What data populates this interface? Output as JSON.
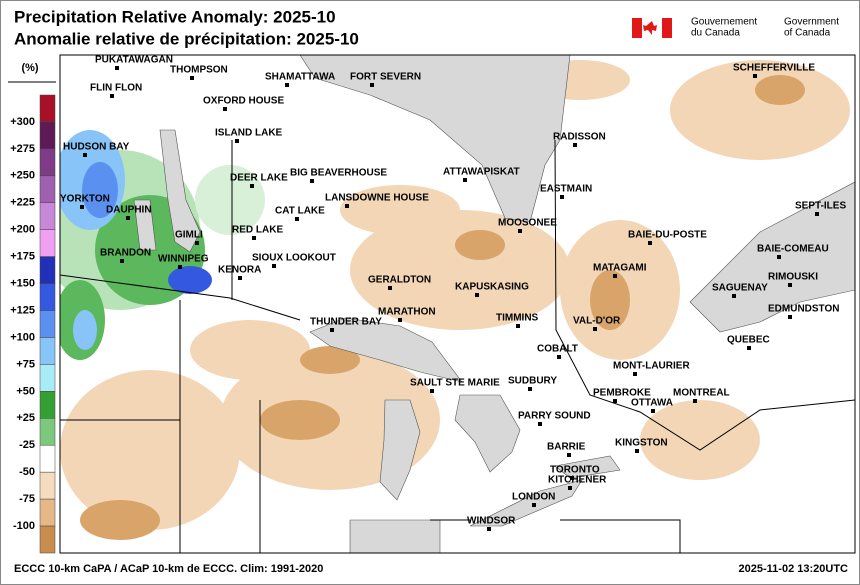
{
  "header": {
    "title": "Precipitation Relative Anomaly: 2025-10",
    "subtitle": "Anomalie relative de précipitation: 2025-10",
    "government_fr": [
      "Gouvernement",
      "du Canada"
    ],
    "government_en": [
      "Government",
      "of Canada"
    ]
  },
  "legend": {
    "unit": "(%)",
    "labels": [
      "+300",
      "+275",
      "+250",
      "+225",
      "+200",
      "+175",
      "+150",
      "+125",
      "+100",
      "+75",
      "+50",
      "+25",
      "-25",
      "-50",
      "-75",
      "-100"
    ],
    "colors": [
      "#a8102a",
      "#5e1a56",
      "#7e3c88",
      "#a060b0",
      "#c888d8",
      "#f0a0f0",
      "#2030b8",
      "#3458e0",
      "#5a90f0",
      "#88c4f8",
      "#a8ecf8",
      "#34a034",
      "#7cc87c",
      "#ffffff",
      "#f6dcbe",
      "#e6b888",
      "#c88c4c"
    ]
  },
  "map": {
    "places": [
      "PUKATAWAGAN",
      "FLIN FLON",
      "THOMPSON",
      "SHAMATTAWA",
      "FORT SEVERN",
      "SCHEFFERVILLE",
      "OXFORD HOUSE",
      "HUDSON BAY",
      "ISLAND LAKE",
      "RADISSON",
      "ATTAWAPISKAT",
      "BIG BEAVERHOUSE",
      "DEER LAKE",
      "EASTMAIN",
      "YORKTON",
      "LANSDOWNE HOUSE",
      "SEPT-ILES",
      "DAUPHIN",
      "CAT LAKE",
      "MOOSONEE",
      "RED LAKE",
      "GIMLI",
      "BAIE-DU-POSTE",
      "BAIE-COMEAU",
      "BRANDON",
      "SIOUX LOOKOUT",
      "WINNIPEG",
      "MATAGAMI",
      "KENORA",
      "RIMOUSKI",
      "GERALDTON",
      "KAPUSKASING",
      "SAGUENAY",
      "EDMUNDSTON",
      "MARATHON",
      "THUNDER BAY",
      "TIMMINS",
      "VAL-D'OR",
      "QUEBEC",
      "COBALT",
      "MONT-LAURIER",
      "SAULT STE MARIE",
      "SUDBURY",
      "PEMBROKE",
      "MONTREAL",
      "OTTAWA",
      "PARRY SOUND",
      "KINGSTON",
      "BARRIE",
      "TORONTO",
      "KITCHENER",
      "LONDON",
      "WINDSOR"
    ]
  },
  "footer": {
    "source": "ECCC 10-km CaPA / ACaP 10-km de ECCC. Clim: 1991-2020",
    "timestamp": "2025-11-02 13:20UTC"
  }
}
